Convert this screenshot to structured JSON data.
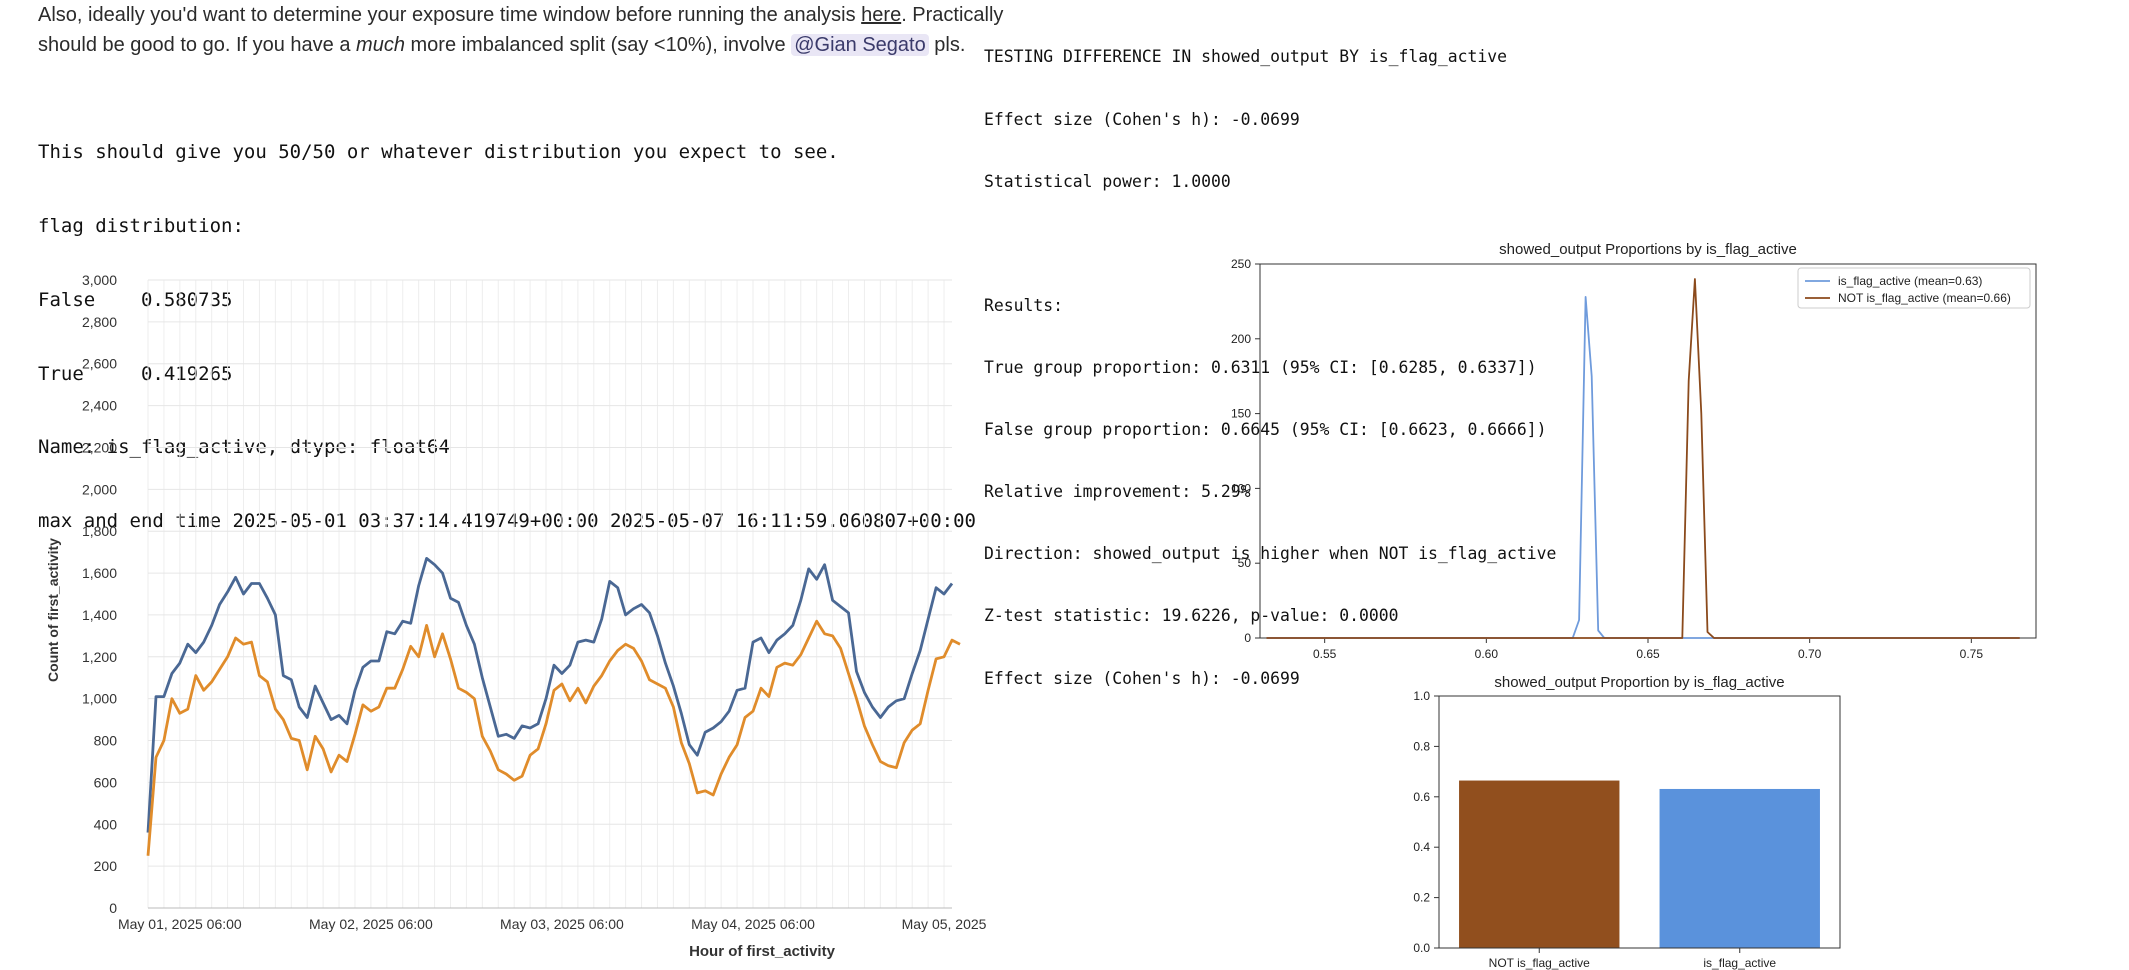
{
  "prose": {
    "line1_pre": "Also, ideally you'd want to determine your exposure time window before running the analysis ",
    "line1_link": "here",
    "line1_post": ". Practically",
    "line2_pre": "should be good to go. If you have a ",
    "line2_em": "much",
    "line2_mid": " more imbalanced split (say <10%), involve ",
    "mention": "@Gian Segato",
    "line2_post": " pls."
  },
  "output_left": [
    "This should give you 50/50 or whatever distribution you expect to see.",
    "flag distribution:",
    "False    0.580735",
    "True     0.419265",
    "Name: is_flag_active, dtype: float64",
    "max and end time 2025-05-01 03:37:14.419749+00:00 2025-05-07 16:11:59.060807+00:00"
  ],
  "output_right": [
    "TESTING DIFFERENCE IN showed_output BY is_flag_active",
    "Effect size (Cohen's h): -0.0699",
    "Statistical power: 1.0000",
    "",
    "Results:",
    "True group proportion: 0.6311 (95% CI: [0.6285, 0.6337])",
    "False group proportion: 0.6645 (95% CI: [0.6623, 0.6666])",
    "Relative improvement: 5.29%",
    "Direction: showed_output is higher when NOT is_flag_active",
    "Z-test statistic: 19.6226, p-value: 0.0000",
    "Effect size (Cohen's h): -0.0699"
  ],
  "chart_data": [
    {
      "type": "line",
      "title": "",
      "xlabel": "Hour of first_activity",
      "ylabel": "Count of first_activity",
      "ylim": [
        0,
        3000
      ],
      "yticks": [
        "0",
        "200",
        "400",
        "600",
        "800",
        "1,000",
        "1,200",
        "1,400",
        "1,600",
        "1,800",
        "2,000",
        "2,200",
        "2,400",
        "2,600",
        "2,800",
        "3,000"
      ],
      "x_start": "2025-05-01 02:00",
      "x_step": "1 hour",
      "xticks": [
        {
          "label": "May 01, 2025 06:00",
          "hour": 4
        },
        {
          "label": "May 02, 2025 06:00",
          "hour": 28
        },
        {
          "label": "May 03, 2025 06:00",
          "hour": 52
        },
        {
          "label": "May 04, 2025 06:00",
          "hour": 76
        },
        {
          "label": "May 05, 2025",
          "hour": 100
        }
      ],
      "grid": true,
      "legend": "none",
      "series": [
        {
          "color": "#4a6894",
          "values": [
            360,
            1010,
            1010,
            1120,
            1170,
            1260,
            1220,
            1270,
            1350,
            1450,
            1510,
            1580,
            1500,
            1550,
            1550,
            1480,
            1400,
            1110,
            1090,
            960,
            910,
            1060,
            980,
            900,
            920,
            880,
            1040,
            1150,
            1180,
            1180,
            1320,
            1310,
            1370,
            1360,
            1540,
            1670,
            1640,
            1600,
            1480,
            1460,
            1350,
            1260,
            1100,
            960,
            820,
            830,
            810,
            870,
            860,
            880,
            1000,
            1160,
            1120,
            1160,
            1270,
            1280,
            1270,
            1380,
            1560,
            1530,
            1400,
            1430,
            1450,
            1410,
            1300,
            1170,
            1060,
            930,
            780,
            730,
            840,
            860,
            890,
            940,
            1040,
            1050,
            1270,
            1290,
            1220,
            1280,
            1310,
            1350,
            1470,
            1620,
            1570,
            1640,
            1470,
            1440,
            1410,
            1130,
            1030,
            960,
            910,
            960,
            990,
            1000,
            1120,
            1230,
            1380,
            1530,
            1500,
            1550
          ]
        },
        {
          "color": "#e08c2b",
          "values": [
            250,
            720,
            800,
            1000,
            930,
            950,
            1110,
            1040,
            1080,
            1140,
            1200,
            1290,
            1260,
            1270,
            1110,
            1080,
            950,
            900,
            810,
            800,
            660,
            820,
            760,
            650,
            730,
            700,
            830,
            970,
            940,
            960,
            1050,
            1050,
            1140,
            1250,
            1200,
            1350,
            1200,
            1310,
            1190,
            1050,
            1030,
            1000,
            820,
            750,
            660,
            640,
            610,
            630,
            730,
            760,
            880,
            1040,
            1070,
            990,
            1050,
            980,
            1060,
            1110,
            1180,
            1230,
            1260,
            1240,
            1180,
            1090,
            1070,
            1050,
            960,
            790,
            690,
            550,
            560,
            540,
            640,
            720,
            780,
            910,
            940,
            1050,
            1010,
            1150,
            1170,
            1160,
            1210,
            1290,
            1370,
            1310,
            1300,
            1240,
            1120,
            1000,
            870,
            780,
            700,
            680,
            670,
            790,
            850,
            880,
            1040,
            1190,
            1200,
            1280,
            1260
          ]
        }
      ]
    },
    {
      "type": "line",
      "title": "showed_output Proportions by is_flag_active",
      "xlabel": "",
      "ylabel": "",
      "xlim": [
        0.53,
        0.77
      ],
      "ylim": [
        0,
        250
      ],
      "xticks": [
        0.55,
        0.6,
        0.65,
        0.7,
        0.75
      ],
      "xtick_labels": [
        "0.55",
        "0.60",
        "0.65",
        "0.70",
        "0.75"
      ],
      "yticks": [
        0,
        50,
        100,
        150,
        200,
        250
      ],
      "ytick_labels": [
        "0",
        "50",
        "100",
        "150",
        "200",
        "250"
      ],
      "legend": "top-right",
      "series": [
        {
          "name": "is_flag_active (mean=0.63)",
          "color": "#6f9bdc",
          "x": [
            0.532,
            0.624,
            0.6267,
            0.6287,
            0.6307,
            0.6326,
            0.6346,
            0.6365,
            0.6385,
            0.765
          ],
          "y": [
            0,
            0,
            0,
            12,
            228,
            175,
            5,
            0,
            0,
            0
          ]
        },
        {
          "name": "NOT is_flag_active (mean=0.66)",
          "color": "#8b4a1c",
          "x": [
            0.532,
            0.658,
            0.6606,
            0.6626,
            0.6645,
            0.6665,
            0.6684,
            0.6704,
            0.765
          ],
          "y": [
            0,
            0,
            0,
            172,
            240,
            150,
            4,
            0,
            0
          ]
        }
      ]
    },
    {
      "type": "bar",
      "title": "showed_output Proportion by is_flag_active",
      "categories": [
        "NOT is_flag_active",
        "is_flag_active"
      ],
      "values": [
        0.6645,
        0.6311
      ],
      "colors": [
        "#914f1e",
        "#5a92dc"
      ],
      "xlabel": "",
      "ylabel": "",
      "ylim": [
        0,
        1.0
      ],
      "yticks": [
        0.0,
        0.2,
        0.4,
        0.6,
        0.8,
        1.0
      ],
      "ytick_labels": [
        "0.0",
        "0.2",
        "0.4",
        "0.6",
        "0.8",
        "1.0"
      ]
    }
  ]
}
